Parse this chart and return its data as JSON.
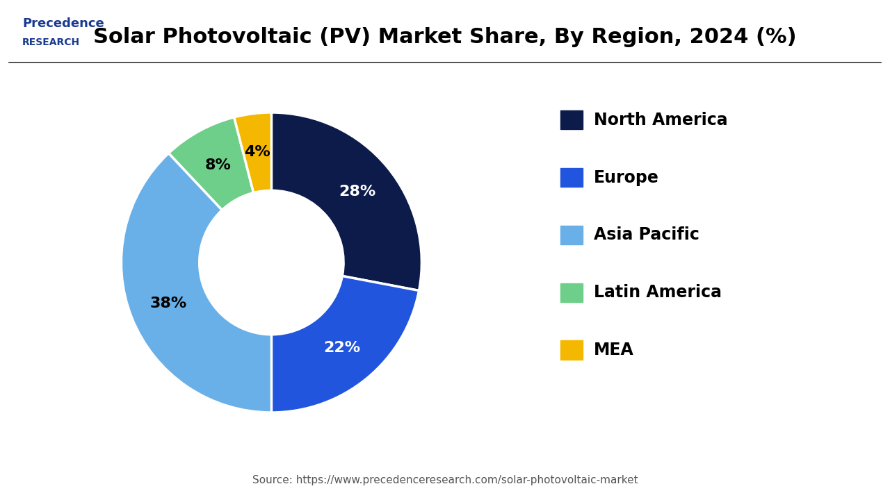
{
  "title": "Solar Photovoltaic (PV) Market Share, By Region, 2024 (%)",
  "labels": [
    "North America",
    "Europe",
    "Asia Pacific",
    "Latin America",
    "MEA"
  ],
  "values": [
    28,
    22,
    38,
    8,
    4
  ],
  "colors": [
    "#0d1b4b",
    "#2255dd",
    "#6ab0e8",
    "#6ecf8a",
    "#f5b800"
  ],
  "pct_labels": [
    "28%",
    "22%",
    "38%",
    "8%",
    "4%"
  ],
  "pct_label_colors": [
    "white",
    "white",
    "black",
    "black",
    "black"
  ],
  "source_text": "Source: https://www.precedenceresearch.com/solar-photovoltaic-market",
  "background_color": "#ffffff",
  "title_fontsize": 22,
  "legend_fontsize": 17,
  "source_fontsize": 11,
  "pct_fontsize": 16,
  "logo_text_line1": "Precedence",
  "logo_text_line2": "RESEARCH",
  "header_line_color": "#333333",
  "donut_width": 0.52
}
